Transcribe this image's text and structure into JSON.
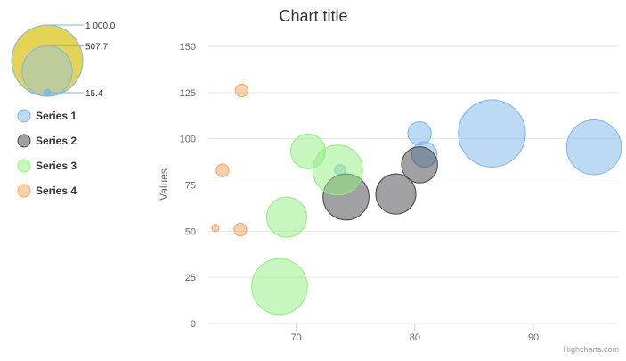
{
  "chart_data": {
    "type": "bubble",
    "title": "Chart title",
    "xlabel": "",
    "ylabel": "Values",
    "xlim": [
      62.6,
      97.2
    ],
    "ylim": [
      0,
      150
    ],
    "x_ticks": [
      "70",
      "80",
      "90"
    ],
    "x_tick_values": [
      70,
      80,
      90
    ],
    "y_ticks": [
      "0",
      "25",
      "50",
      "75",
      "100",
      "125",
      "150"
    ],
    "y_tick_values": [
      0,
      25,
      50,
      75,
      100,
      125,
      150
    ],
    "grid": true,
    "legend_position": "left",
    "size_legend": {
      "labels": [
        "1 000.0",
        "507.7",
        "15.4"
      ],
      "values": [
        1000,
        507.7,
        15.4
      ]
    },
    "series": [
      {
        "name": "Series 1",
        "color": "#7cb5ec",
        "points": [
          {
            "x": 95.1,
            "y": 95.4,
            "z": 600
          },
          {
            "x": 86.5,
            "y": 102.9,
            "z": 890
          },
          {
            "x": 80.4,
            "y": 102.9,
            "z": 120
          },
          {
            "x": 80.8,
            "y": 91.5,
            "z": 140
          },
          {
            "x": 73.7,
            "y": 83.1,
            "z": 30
          }
        ]
      },
      {
        "name": "Series 2",
        "color": "#434348",
        "points": [
          {
            "x": 80.4,
            "y": 85.9,
            "z": 270
          },
          {
            "x": 74.2,
            "y": 68.5,
            "z": 430
          },
          {
            "x": 78.4,
            "y": 70.1,
            "z": 330
          }
        ]
      },
      {
        "name": "Series 3",
        "color": "#90ed7d",
        "points": [
          {
            "x": 68.6,
            "y": 20.0,
            "z": 620
          },
          {
            "x": 69.2,
            "y": 57.6,
            "z": 330
          },
          {
            "x": 71.0,
            "y": 93.2,
            "z": 250
          },
          {
            "x": 73.5,
            "y": 83.1,
            "z": 500
          }
        ]
      },
      {
        "name": "Series 4",
        "color": "#f7a35c",
        "points": [
          {
            "x": 65.4,
            "y": 126.1,
            "z": 40
          },
          {
            "x": 63.8,
            "y": 82.9,
            "z": 40
          },
          {
            "x": 65.3,
            "y": 50.8,
            "z": 40
          },
          {
            "x": 63.2,
            "y": 51.7,
            "z": 15.4
          }
        ]
      }
    ]
  },
  "credits": "Highcharts.com"
}
